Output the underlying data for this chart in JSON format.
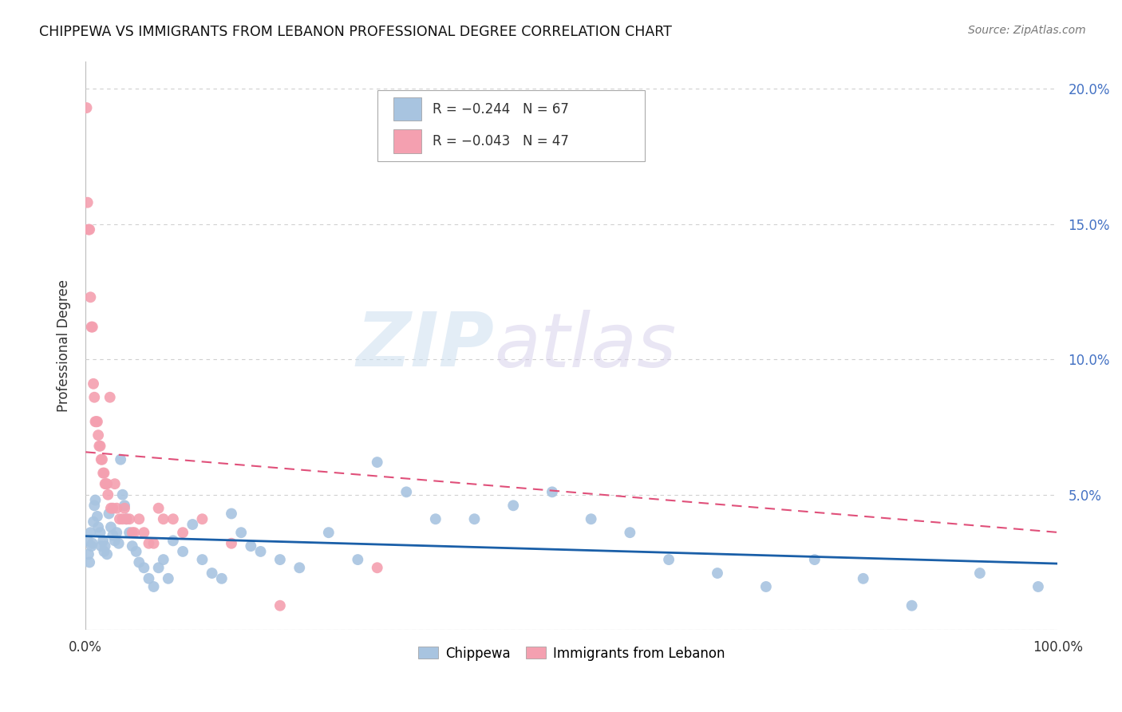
{
  "title": "CHIPPEWA VS IMMIGRANTS FROM LEBANON PROFESSIONAL DEGREE CORRELATION CHART",
  "source": "Source: ZipAtlas.com",
  "ylabel": "Professional Degree",
  "xlim": [
    0,
    1.0
  ],
  "ylim": [
    0,
    0.21
  ],
  "yticks": [
    0.0,
    0.05,
    0.1,
    0.15,
    0.2
  ],
  "ytick_labels": [
    "",
    "5.0%",
    "10.0%",
    "15.0%",
    "20.0%"
  ],
  "xticks": [
    0.0,
    0.1,
    0.2,
    0.3,
    0.4,
    0.5,
    0.6,
    0.7,
    0.8,
    0.9,
    1.0
  ],
  "xtick_labels": [
    "0.0%",
    "",
    "",
    "",
    "",
    "",
    "",
    "",
    "",
    "",
    "100.0%"
  ],
  "chippewa_color": "#a8c4e0",
  "lebanon_color": "#f4a0b0",
  "trendline_chippewa_color": "#1a5fa8",
  "trendline_lebanon_color": "#e0507a",
  "legend_R_chippewa": "R = −0.244",
  "legend_N_chippewa": "N = 67",
  "legend_R_lebanon": "R = −0.043",
  "legend_N_lebanon": "N = 47",
  "watermark_zip": "ZIP",
  "watermark_atlas": "atlas",
  "background_color": "#ffffff",
  "grid_color": "#d0d0d0",
  "right_tick_color": "#4472c4",
  "chippewa_x": [
    0.002,
    0.003,
    0.004,
    0.005,
    0.006,
    0.007,
    0.008,
    0.009,
    0.01,
    0.012,
    0.013,
    0.015,
    0.016,
    0.018,
    0.019,
    0.02,
    0.022,
    0.024,
    0.026,
    0.028,
    0.03,
    0.032,
    0.034,
    0.036,
    0.038,
    0.04,
    0.042,
    0.045,
    0.048,
    0.052,
    0.055,
    0.06,
    0.065,
    0.07,
    0.075,
    0.08,
    0.085,
    0.09,
    0.1,
    0.11,
    0.12,
    0.13,
    0.14,
    0.15,
    0.16,
    0.17,
    0.18,
    0.2,
    0.22,
    0.25,
    0.28,
    0.3,
    0.33,
    0.36,
    0.4,
    0.44,
    0.48,
    0.52,
    0.56,
    0.6,
    0.65,
    0.7,
    0.75,
    0.8,
    0.85,
    0.92,
    0.98
  ],
  "chippewa_y": [
    0.033,
    0.028,
    0.025,
    0.036,
    0.031,
    0.032,
    0.04,
    0.046,
    0.048,
    0.042,
    0.038,
    0.036,
    0.031,
    0.033,
    0.029,
    0.031,
    0.028,
    0.043,
    0.038,
    0.035,
    0.033,
    0.036,
    0.032,
    0.063,
    0.05,
    0.046,
    0.041,
    0.036,
    0.031,
    0.029,
    0.025,
    0.023,
    0.019,
    0.016,
    0.023,
    0.026,
    0.019,
    0.033,
    0.029,
    0.039,
    0.026,
    0.021,
    0.019,
    0.043,
    0.036,
    0.031,
    0.029,
    0.026,
    0.023,
    0.036,
    0.026,
    0.062,
    0.051,
    0.041,
    0.041,
    0.046,
    0.051,
    0.041,
    0.036,
    0.026,
    0.021,
    0.016,
    0.026,
    0.019,
    0.009,
    0.021,
    0.016
  ],
  "lebanon_x": [
    0.001,
    0.002,
    0.003,
    0.004,
    0.005,
    0.006,
    0.007,
    0.008,
    0.009,
    0.01,
    0.011,
    0.012,
    0.013,
    0.014,
    0.015,
    0.016,
    0.017,
    0.018,
    0.019,
    0.02,
    0.021,
    0.022,
    0.023,
    0.025,
    0.026,
    0.028,
    0.03,
    0.032,
    0.035,
    0.038,
    0.04,
    0.042,
    0.045,
    0.048,
    0.05,
    0.055,
    0.06,
    0.065,
    0.07,
    0.075,
    0.08,
    0.09,
    0.1,
    0.12,
    0.15,
    0.2,
    0.3
  ],
  "lebanon_y": [
    0.193,
    0.158,
    0.148,
    0.148,
    0.123,
    0.112,
    0.112,
    0.091,
    0.086,
    0.077,
    0.077,
    0.077,
    0.072,
    0.068,
    0.068,
    0.063,
    0.063,
    0.058,
    0.058,
    0.054,
    0.054,
    0.054,
    0.05,
    0.086,
    0.045,
    0.045,
    0.054,
    0.045,
    0.041,
    0.041,
    0.045,
    0.041,
    0.041,
    0.036,
    0.036,
    0.041,
    0.036,
    0.032,
    0.032,
    0.045,
    0.041,
    0.041,
    0.036,
    0.041,
    0.032,
    0.009,
    0.023
  ]
}
